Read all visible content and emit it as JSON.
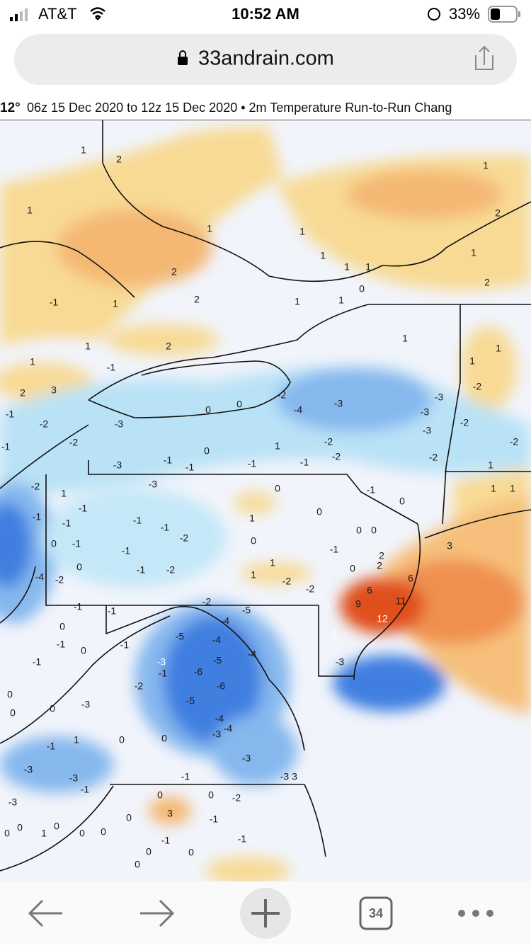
{
  "status": {
    "carrier": "AT&T",
    "time": "10:52 AM",
    "battery": "33%"
  },
  "url": "33andrain.com",
  "header": {
    "frame": "12°",
    "text": "06z 15 Dec 2020 to 12z 15 Dec 2020 • 2m Temperature Run-to-Run Chang"
  },
  "map": {
    "labels": [
      1,
      2,
      1,
      1,
      1,
      2,
      2,
      1,
      -1,
      1,
      1,
      1,
      0,
      1,
      1,
      1,
      2,
      2,
      1,
      2,
      1,
      1,
      2,
      3,
      -1,
      1,
      1,
      1,
      -2,
      -3,
      -3,
      -3,
      -2,
      -2,
      -2,
      -3,
      -4,
      -2,
      0,
      0,
      -2,
      -2,
      -1,
      1,
      0,
      -1,
      -1,
      -1,
      -3,
      -3,
      -2,
      -2,
      -1,
      -1,
      -2,
      1,
      -1,
      -1,
      -1,
      0,
      -1,
      -3,
      -1,
      -1,
      -2,
      -1,
      0,
      -1,
      -2,
      -4,
      -2,
      0,
      0,
      1,
      0,
      -1,
      0,
      0,
      0,
      -1,
      1,
      1,
      -2,
      -2,
      0,
      2,
      2,
      6,
      6,
      11,
      9,
      12,
      3,
      5,
      3,
      1,
      1,
      1,
      -2,
      -5,
      -4,
      -5,
      -4,
      -4,
      -5,
      -6,
      -6,
      -5,
      -3,
      -2,
      -1,
      -1,
      -1,
      -1,
      0,
      -1,
      0,
      -1,
      -3,
      -3,
      0,
      0,
      0,
      -4,
      -4,
      -3,
      0,
      0,
      1,
      -1,
      -3,
      -3,
      -1,
      -3,
      -3,
      3,
      -1,
      0,
      0,
      -2,
      3,
      0,
      -1,
      -3,
      0,
      1,
      0,
      0,
      0,
      0,
      -1,
      0,
      0,
      0,
      -1
    ]
  },
  "toolbar": {
    "tabs": "34"
  }
}
